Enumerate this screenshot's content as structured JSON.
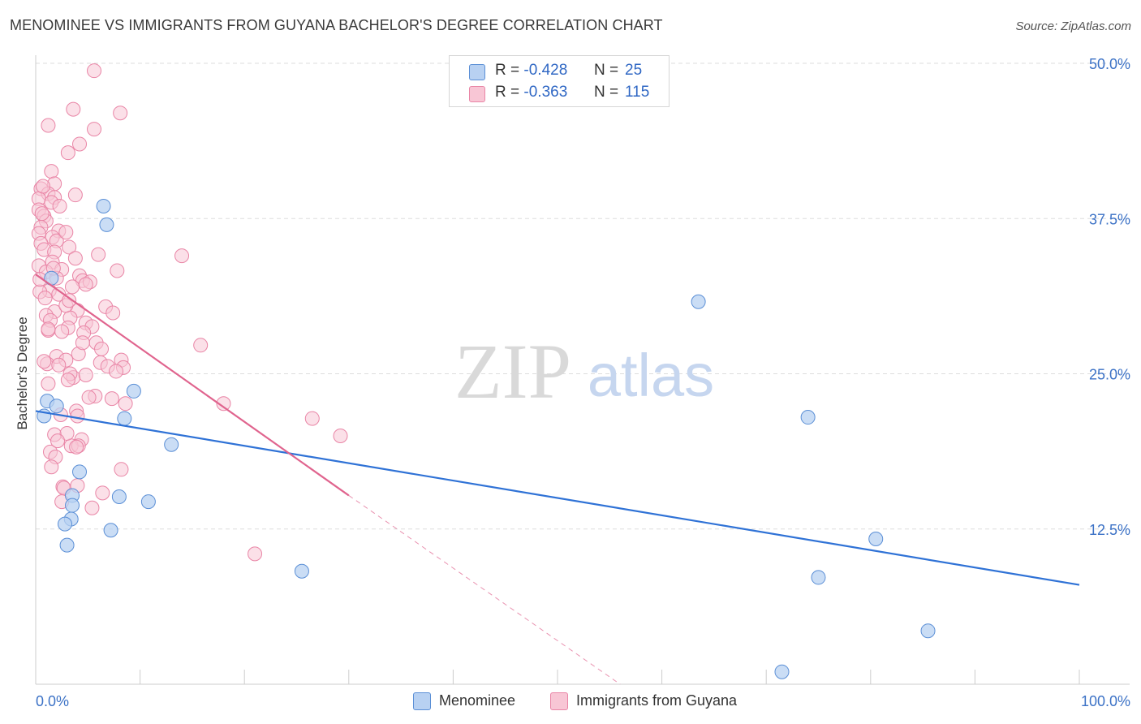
{
  "title": "MENOMINEE VS IMMIGRANTS FROM GUYANA BACHELOR'S DEGREE CORRELATION CHART",
  "source": "Source: ZipAtlas.com",
  "watermark": {
    "zip": "ZIP",
    "atlas": "atlas"
  },
  "legend": {
    "r_label": "R =",
    "n_label": "N =",
    "rows": [
      {
        "r": "-0.428",
        "n": "25",
        "color": "#a9c6ef",
        "stroke": "#5b8fd6"
      },
      {
        "r": "-0.363",
        "n": "115",
        "color": "#f7b9cc",
        "stroke": "#e87aa0"
      }
    ]
  },
  "bottom_legend": [
    "Menominee",
    "Immigrants from Guyana"
  ],
  "colors": {
    "blue_fill": "#b8d1f2",
    "blue_stroke": "#5b8fd6",
    "blue_line": "#2f72d6",
    "pink_fill": "#f8c6d5",
    "pink_stroke": "#e985a6",
    "pink_line": "#e0648e",
    "grid": "#dddddd",
    "tick_text": "#3c72c6"
  },
  "chart_data": {
    "type": "scatter",
    "title": "MENOMINEE VS IMMIGRANTS FROM GUYANA BACHELOR'S DEGREE CORRELATION CHART",
    "xlabel": "",
    "ylabel": "Bachelor's Degree",
    "xlim": [
      0,
      100
    ],
    "ylim": [
      0,
      50
    ],
    "x_tick_labels": [
      "0.0%",
      "100.0%"
    ],
    "y_ticks": [
      12.5,
      25.0,
      37.5,
      50.0
    ],
    "y_tick_labels": [
      "12.5%",
      "25.0%",
      "37.5%",
      "50.0%"
    ],
    "series": [
      {
        "name": "Menominee",
        "r": -0.428,
        "n": 25,
        "trend": {
          "x0": 0,
          "y0": 22.0,
          "x1": 100,
          "y1": 8.0,
          "dash_to": null
        },
        "points": [
          [
            0.8,
            21.6
          ],
          [
            1.1,
            22.8
          ],
          [
            2.0,
            22.4
          ],
          [
            6.5,
            38.5
          ],
          [
            6.8,
            37.0
          ],
          [
            1.5,
            32.7
          ],
          [
            9.4,
            23.6
          ],
          [
            8.5,
            21.4
          ],
          [
            13.0,
            19.3
          ],
          [
            4.2,
            17.1
          ],
          [
            8.0,
            15.1
          ],
          [
            10.8,
            14.7
          ],
          [
            3.5,
            15.2
          ],
          [
            3.5,
            14.4
          ],
          [
            3.4,
            13.3
          ],
          [
            7.2,
            12.4
          ],
          [
            3.0,
            11.2
          ],
          [
            25.5,
            9.1
          ],
          [
            63.5,
            30.8
          ],
          [
            74.0,
            21.5
          ],
          [
            80.5,
            11.7
          ],
          [
            75.0,
            8.6
          ],
          [
            85.5,
            4.3
          ],
          [
            71.5,
            1.0
          ],
          [
            2.8,
            12.9
          ]
        ]
      },
      {
        "name": "Immigrants from Guyana",
        "r": -0.363,
        "n": 115,
        "trend": {
          "x0": 0,
          "y0": 33.0,
          "x1": 30,
          "y1": 15.2,
          "dash_to": [
            56,
            0
          ]
        },
        "points": [
          [
            5.6,
            49.4
          ],
          [
            3.6,
            46.3
          ],
          [
            8.1,
            46.0
          ],
          [
            1.2,
            45.0
          ],
          [
            5.6,
            44.7
          ],
          [
            4.2,
            43.5
          ],
          [
            3.1,
            42.8
          ],
          [
            1.5,
            41.3
          ],
          [
            1.8,
            40.3
          ],
          [
            0.5,
            39.9
          ],
          [
            1.2,
            39.5
          ],
          [
            3.8,
            39.4
          ],
          [
            1.8,
            39.2
          ],
          [
            0.3,
            39.1
          ],
          [
            1.5,
            38.8
          ],
          [
            2.3,
            38.5
          ],
          [
            0.3,
            38.2
          ],
          [
            0.8,
            37.7
          ],
          [
            1.0,
            37.3
          ],
          [
            0.5,
            36.8
          ],
          [
            2.2,
            36.5
          ],
          [
            0.3,
            36.3
          ],
          [
            1.6,
            36.0
          ],
          [
            2.0,
            35.7
          ],
          [
            0.5,
            35.5
          ],
          [
            3.2,
            35.2
          ],
          [
            0.8,
            35.0
          ],
          [
            1.8,
            34.8
          ],
          [
            6.0,
            34.6
          ],
          [
            14.0,
            34.5
          ],
          [
            3.8,
            34.3
          ],
          [
            1.6,
            34.0
          ],
          [
            0.3,
            33.7
          ],
          [
            2.5,
            33.4
          ],
          [
            1.0,
            33.2
          ],
          [
            7.8,
            33.3
          ],
          [
            4.2,
            32.9
          ],
          [
            2.0,
            32.7
          ],
          [
            4.5,
            32.5
          ],
          [
            5.2,
            32.4
          ],
          [
            4.8,
            32.2
          ],
          [
            3.5,
            32.0
          ],
          [
            1.3,
            31.7
          ],
          [
            0.4,
            31.6
          ],
          [
            2.2,
            31.4
          ],
          [
            0.9,
            31.1
          ],
          [
            6.7,
            30.4
          ],
          [
            4.0,
            30.1
          ],
          [
            1.8,
            30.0
          ],
          [
            7.4,
            29.9
          ],
          [
            1.0,
            29.7
          ],
          [
            3.3,
            29.5
          ],
          [
            1.4,
            29.3
          ],
          [
            4.8,
            29.1
          ],
          [
            5.4,
            28.8
          ],
          [
            3.1,
            28.7
          ],
          [
            1.2,
            28.5
          ],
          [
            2.5,
            28.4
          ],
          [
            4.6,
            28.3
          ],
          [
            5.8,
            27.5
          ],
          [
            15.8,
            27.3
          ],
          [
            4.1,
            26.6
          ],
          [
            2.0,
            26.4
          ],
          [
            2.9,
            26.1
          ],
          [
            8.2,
            26.1
          ],
          [
            6.2,
            25.9
          ],
          [
            1.1,
            25.8
          ],
          [
            6.9,
            25.6
          ],
          [
            8.4,
            25.5
          ],
          [
            7.7,
            25.2
          ],
          [
            3.6,
            24.7
          ],
          [
            4.8,
            24.9
          ],
          [
            1.2,
            24.2
          ],
          [
            5.7,
            23.2
          ],
          [
            7.3,
            23.0
          ],
          [
            8.6,
            22.6
          ],
          [
            18.0,
            22.6
          ],
          [
            3.9,
            22.0
          ],
          [
            4.0,
            21.6
          ],
          [
            26.5,
            21.4
          ],
          [
            1.8,
            20.1
          ],
          [
            4.4,
            19.7
          ],
          [
            29.2,
            20.0
          ],
          [
            3.4,
            19.2
          ],
          [
            4.1,
            19.2
          ],
          [
            3.9,
            19.1
          ],
          [
            1.4,
            18.7
          ],
          [
            1.9,
            18.3
          ],
          [
            8.2,
            17.3
          ],
          [
            2.6,
            15.9
          ],
          [
            2.7,
            15.8
          ],
          [
            6.4,
            15.4
          ],
          [
            2.5,
            14.7
          ],
          [
            5.4,
            14.2
          ],
          [
            21.0,
            10.5
          ],
          [
            0.7,
            40.1
          ],
          [
            0.6,
            37.9
          ],
          [
            2.9,
            36.4
          ],
          [
            1.7,
            33.5
          ],
          [
            0.4,
            32.6
          ],
          [
            2.9,
            30.5
          ],
          [
            1.2,
            28.6
          ],
          [
            4.5,
            27.5
          ],
          [
            6.3,
            27.0
          ],
          [
            0.8,
            26.0
          ],
          [
            2.2,
            25.7
          ],
          [
            3.3,
            25.0
          ],
          [
            3.1,
            24.5
          ],
          [
            5.1,
            23.1
          ],
          [
            2.4,
            21.7
          ],
          [
            3.0,
            20.2
          ],
          [
            2.1,
            19.6
          ],
          [
            1.5,
            17.5
          ],
          [
            4.0,
            16.0
          ],
          [
            3.2,
            30.9
          ]
        ]
      }
    ]
  }
}
